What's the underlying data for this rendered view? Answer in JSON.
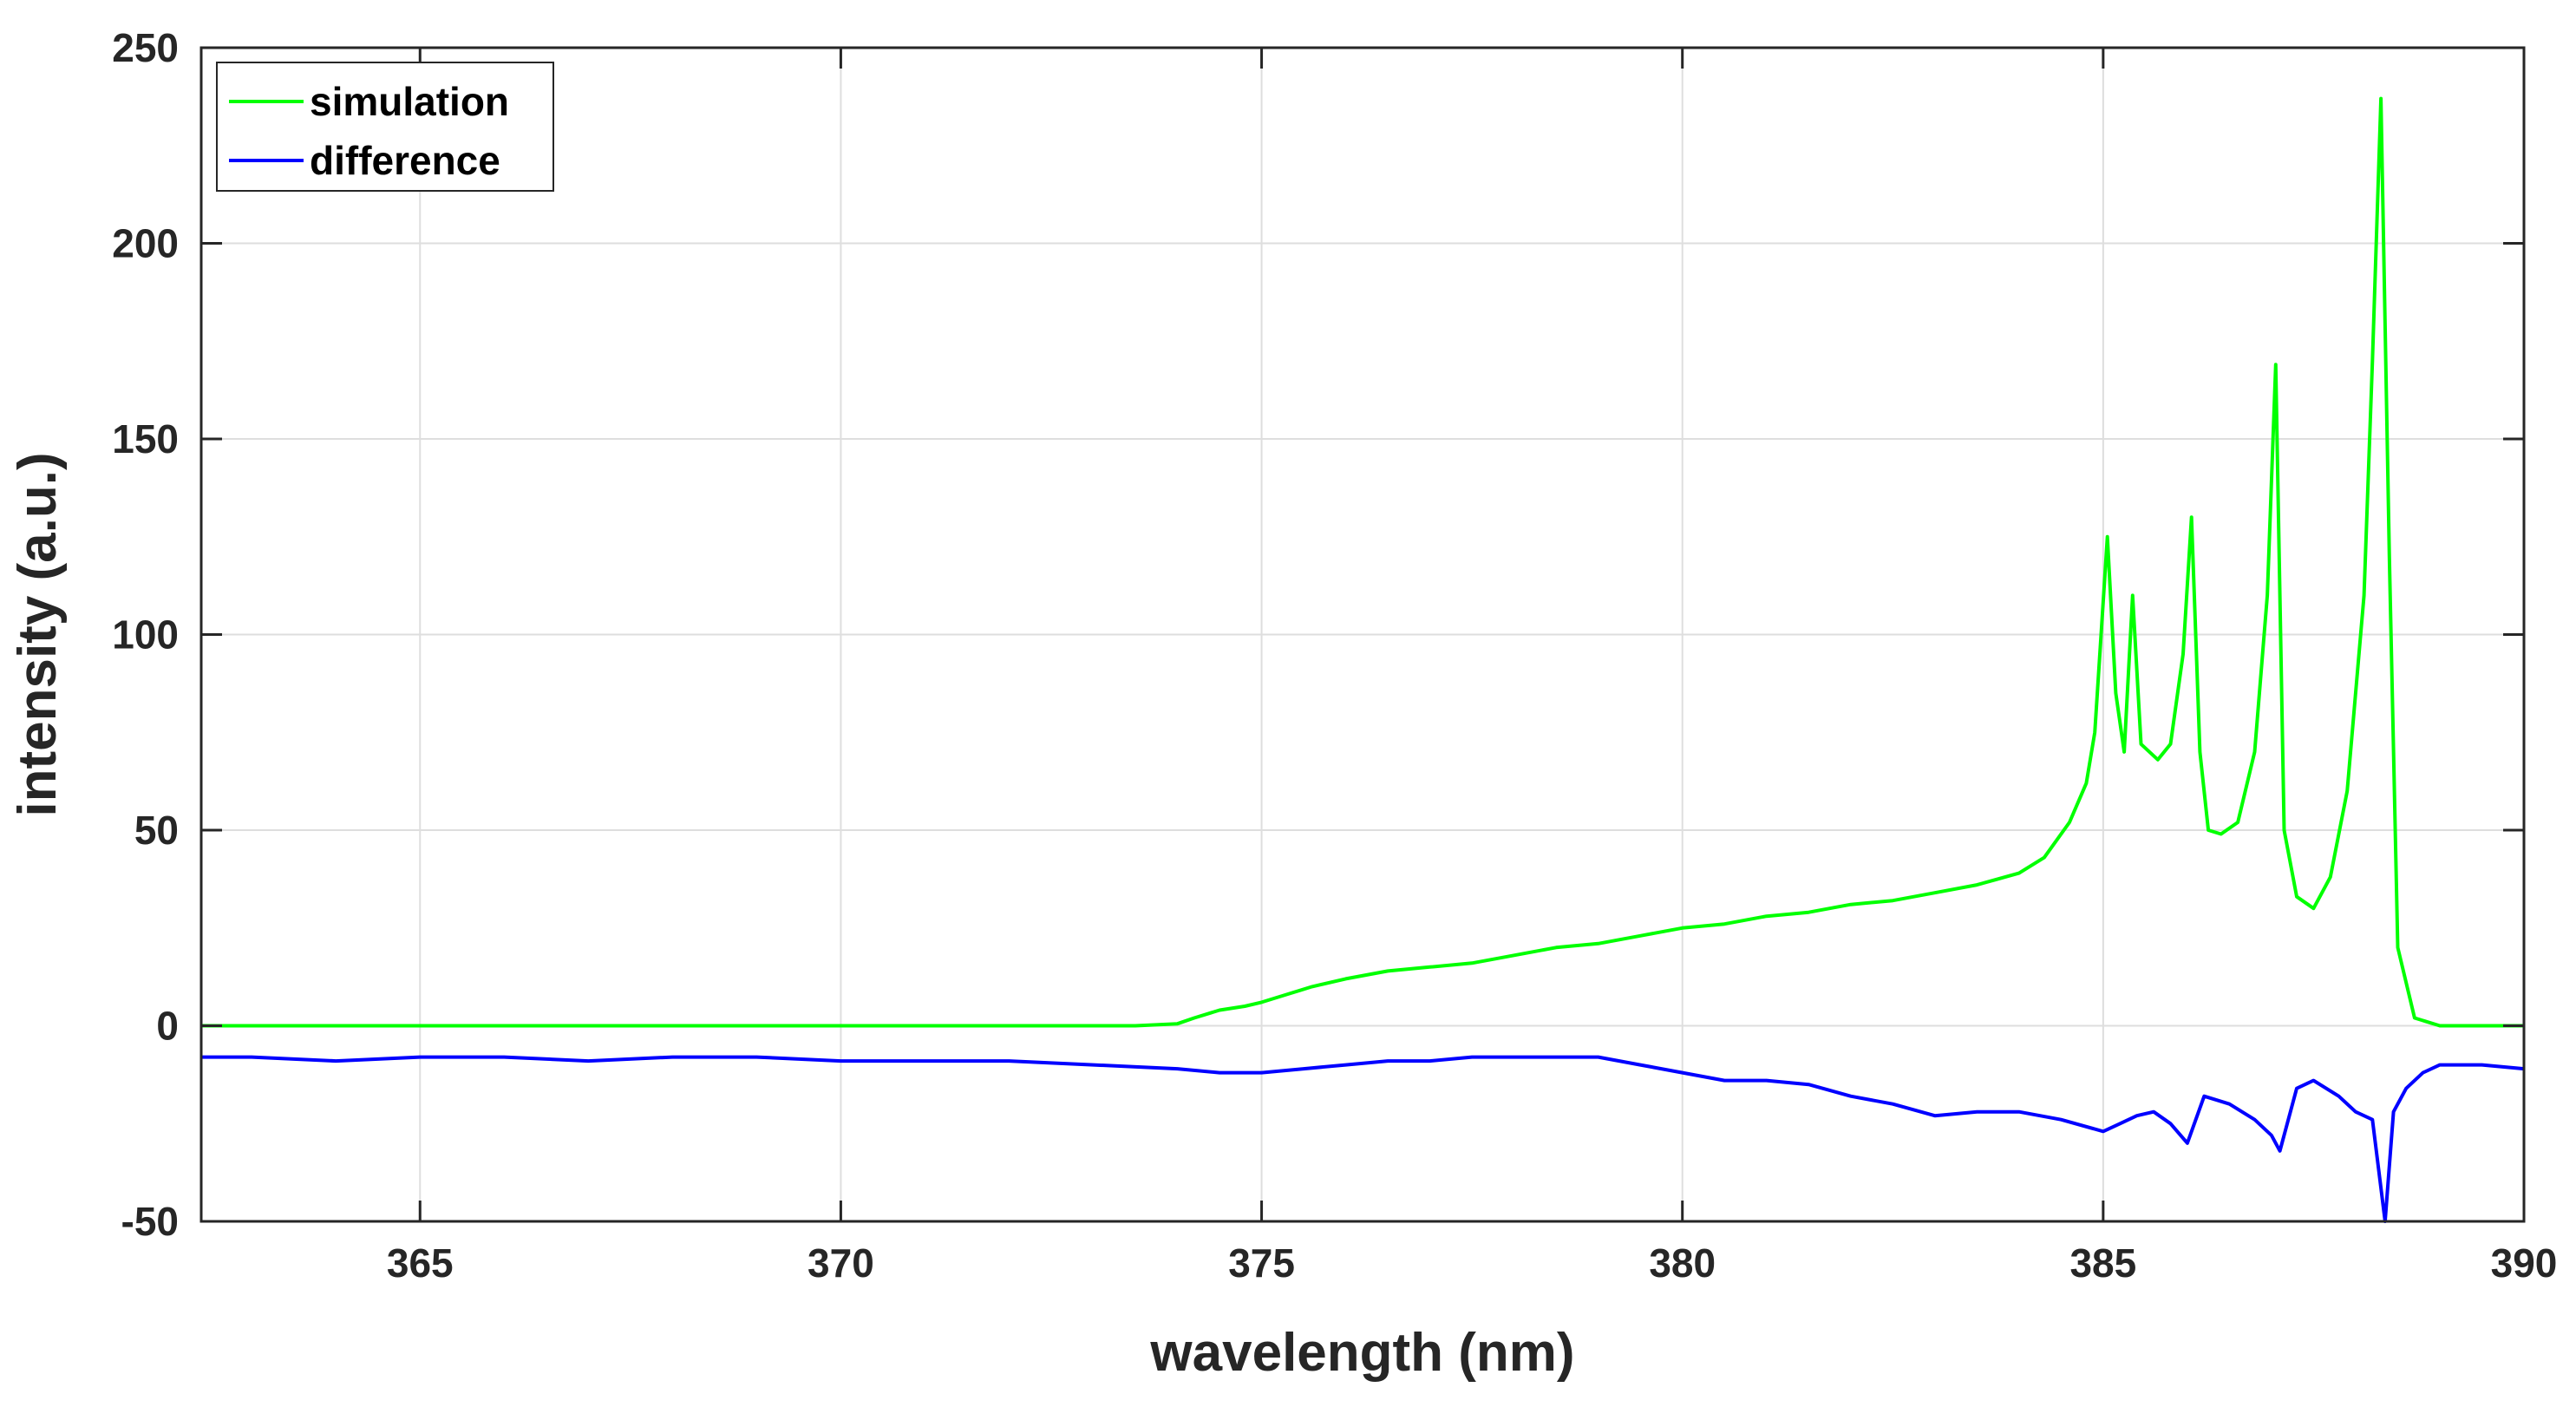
{
  "chart_data": {
    "type": "line",
    "title": "",
    "xlabel": "wavelength (nm)",
    "ylabel": "intensity (a.u.)",
    "xlim": [
      362.4,
      390
    ],
    "ylim": [
      -50,
      250
    ],
    "xticks": [
      365,
      370,
      375,
      380,
      385,
      390
    ],
    "yticks": [
      -50,
      0,
      50,
      100,
      150,
      200,
      250
    ],
    "grid": true,
    "legend_position": "top-left",
    "series": [
      {
        "name": "simulation",
        "color": "#00ff00",
        "x": [
          362.4,
          370.0,
          373.5,
          374.0,
          374.2,
          374.5,
          374.8,
          375.0,
          375.3,
          375.6,
          376.0,
          376.5,
          377.0,
          377.5,
          378.0,
          378.5,
          379.0,
          379.5,
          380.0,
          380.5,
          381.0,
          381.5,
          382.0,
          382.5,
          383.0,
          383.5,
          384.0,
          384.3,
          384.6,
          384.8,
          384.9,
          385.05,
          385.15,
          385.25,
          385.35,
          385.45,
          385.55,
          385.65,
          385.8,
          385.95,
          386.05,
          386.15,
          386.25,
          386.4,
          386.6,
          386.8,
          386.95,
          387.05,
          387.15,
          387.3,
          387.5,
          387.7,
          387.9,
          388.1,
          388.2,
          388.3,
          388.4,
          388.5,
          388.7,
          389.0,
          389.5,
          390.0
        ],
        "values": [
          0,
          0,
          0,
          0.5,
          2,
          4,
          5,
          6,
          8,
          10,
          12,
          14,
          15,
          16,
          18,
          20,
          21,
          23,
          25,
          26,
          28,
          29,
          31,
          32,
          34,
          36,
          39,
          43,
          52,
          62,
          75,
          125,
          85,
          70,
          110,
          72,
          70,
          68,
          72,
          95,
          130,
          70,
          50,
          49,
          52,
          70,
          110,
          169,
          50,
          33,
          30,
          38,
          60,
          110,
          170,
          237,
          120,
          20,
          2,
          0,
          0,
          0
        ]
      },
      {
        "name": "difference",
        "color": "#0000ff",
        "x": [
          362.4,
          363.0,
          364.0,
          365.0,
          366.0,
          367.0,
          368.0,
          369.0,
          370.0,
          371.0,
          372.0,
          373.0,
          374.0,
          374.5,
          375.0,
          375.5,
          376.0,
          376.5,
          377.0,
          377.5,
          378.0,
          378.5,
          379.0,
          379.5,
          380.0,
          380.5,
          381.0,
          381.5,
          382.0,
          382.5,
          383.0,
          383.5,
          384.0,
          384.5,
          385.0,
          385.2,
          385.4,
          385.6,
          385.8,
          386.0,
          386.2,
          386.5,
          386.8,
          387.0,
          387.1,
          387.3,
          387.5,
          387.8,
          388.0,
          388.2,
          388.35,
          388.45,
          388.6,
          388.8,
          389.0,
          389.5,
          390.0
        ],
        "values": [
          -8,
          -8,
          -9,
          -8,
          -8,
          -9,
          -8,
          -8,
          -9,
          -9,
          -9,
          -10,
          -11,
          -12,
          -12,
          -11,
          -10,
          -9,
          -9,
          -8,
          -8,
          -8,
          -8,
          -10,
          -12,
          -14,
          -14,
          -15,
          -18,
          -20,
          -23,
          -22,
          -22,
          -24,
          -27,
          -25,
          -23,
          -22,
          -25,
          -30,
          -18,
          -20,
          -24,
          -28,
          -32,
          -16,
          -14,
          -18,
          -22,
          -24,
          -50,
          -22,
          -16,
          -12,
          -10,
          -10,
          -11
        ]
      }
    ]
  }
}
